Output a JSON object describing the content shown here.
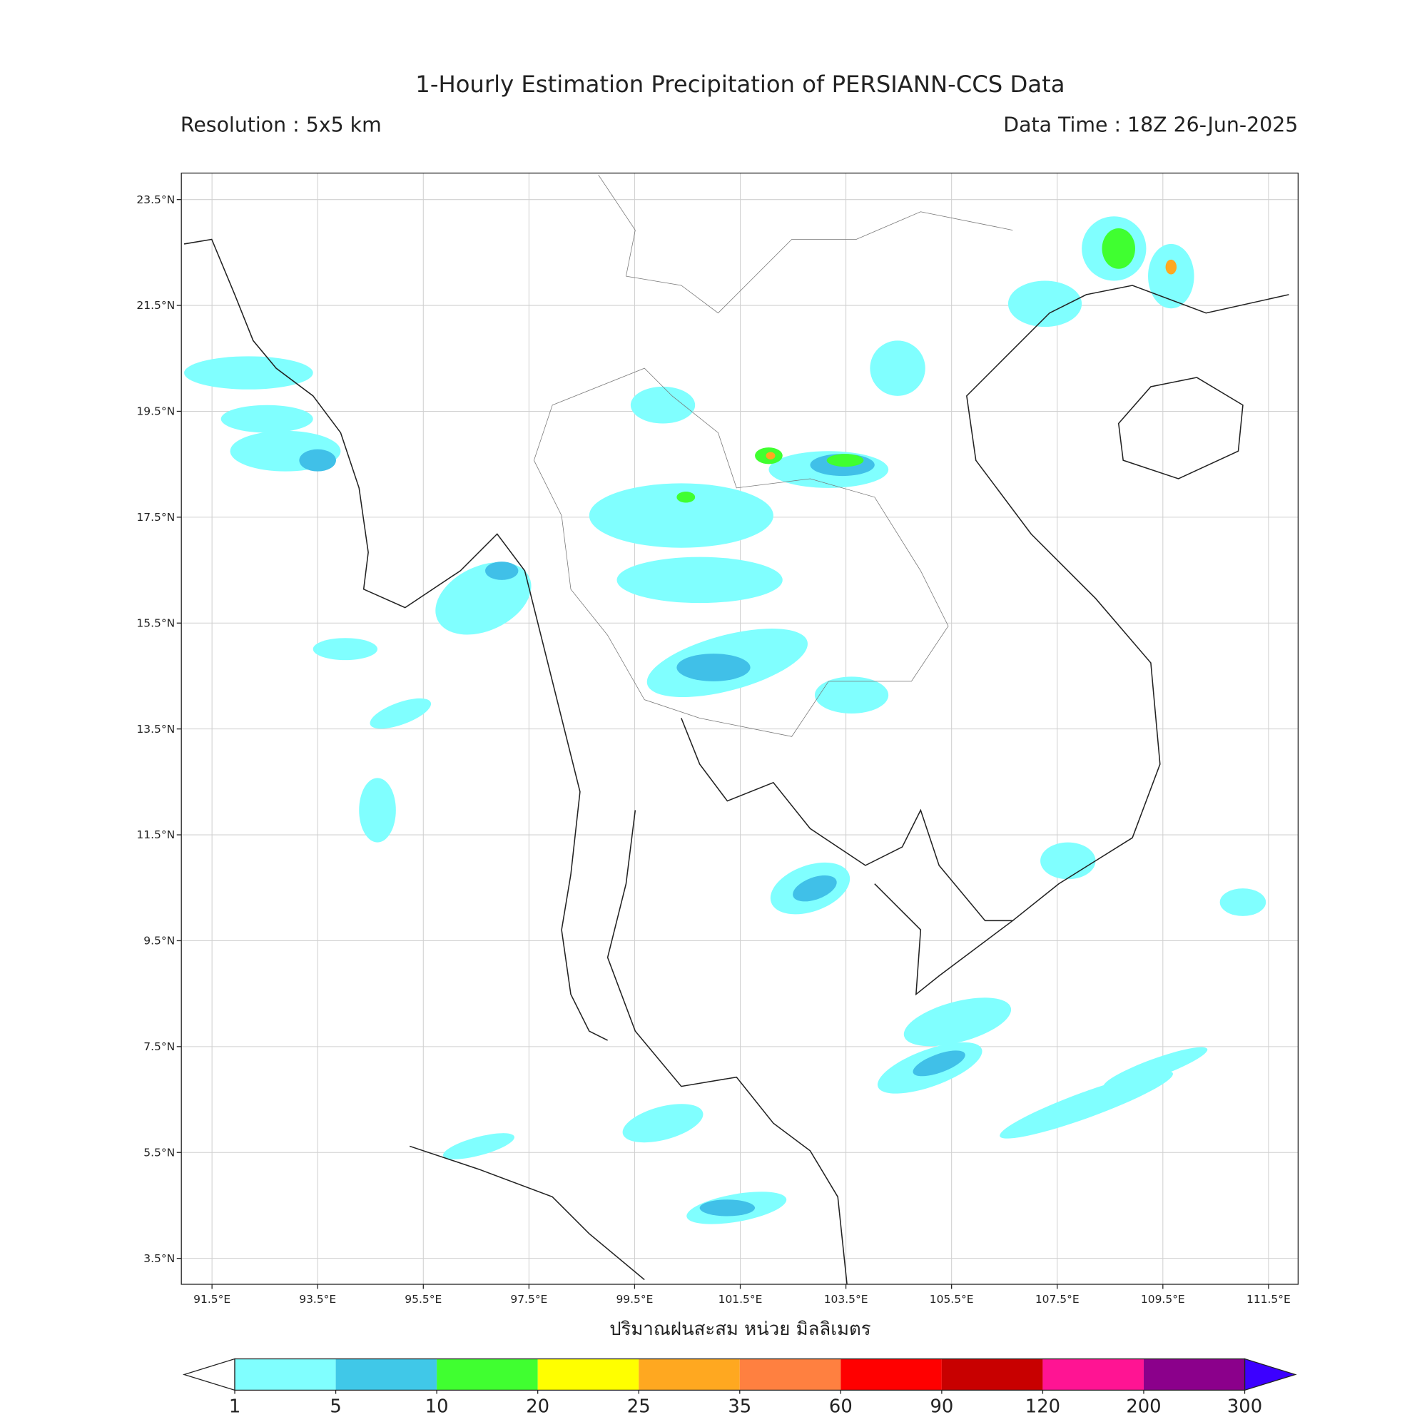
{
  "header": {
    "title": "1-Hourly Estimation Precipitation of PERSIANN-CCS Data",
    "resolution": "Resolution : 5x5 km",
    "data_time": "Data Time : 18Z 26-Jun-2025"
  },
  "map": {
    "xlim": [
      90.92,
      112.06
    ],
    "ylim": [
      3.01,
      24.0
    ],
    "xticks": [
      {
        "value": 91.5,
        "label": "91.5°E"
      },
      {
        "value": 93.5,
        "label": "93.5°E"
      },
      {
        "value": 95.5,
        "label": "95.5°E"
      },
      {
        "value": 97.5,
        "label": "97.5°E"
      },
      {
        "value": 99.5,
        "label": "99.5°E"
      },
      {
        "value": 101.5,
        "label": "101.5°E"
      },
      {
        "value": 103.5,
        "label": "103.5°E"
      },
      {
        "value": 105.5,
        "label": "105.5°E"
      },
      {
        "value": 107.5,
        "label": "107.5°E"
      },
      {
        "value": 109.5,
        "label": "109.5°E"
      },
      {
        "value": 111.5,
        "label": "111.5°E"
      }
    ],
    "yticks": [
      {
        "value": 23.5,
        "label": "23.5°N"
      },
      {
        "value": 21.5,
        "label": "21.5°N"
      },
      {
        "value": 19.5,
        "label": "19.5°N"
      },
      {
        "value": 17.5,
        "label": "17.5°N"
      },
      {
        "value": 15.5,
        "label": "15.5°N"
      },
      {
        "value": 13.5,
        "label": "13.5°N"
      },
      {
        "value": 11.5,
        "label": "11.5°N"
      },
      {
        "value": 9.5,
        "label": "9.5°N"
      },
      {
        "value": 7.5,
        "label": "7.5°N"
      },
      {
        "value": 5.5,
        "label": "5.5°N"
      },
      {
        "value": 3.5,
        "label": "3.5°N"
      }
    ],
    "grid": true,
    "x_label": "ปริมาณฝนสะสม หน่วย มิลลิเมตร"
  },
  "colorbar": {
    "levels": [
      1,
      5,
      10,
      20,
      25,
      35,
      60,
      90,
      120,
      200,
      300
    ],
    "colors": [
      "#80ffff",
      "#40c8e8",
      "#40ff30",
      "#ffff00",
      "#ffa820",
      "#ff8040",
      "#ff0000",
      "#c80000",
      "#ff1493",
      "#8b008b"
    ],
    "under_color": "#ffffff",
    "over_color": "#3c00ff"
  }
}
